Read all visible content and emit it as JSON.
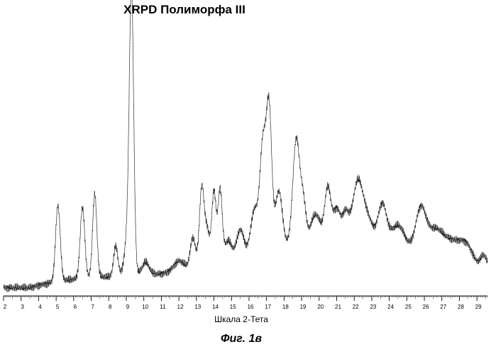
{
  "chart_data": {
    "type": "line",
    "title": "XRPD Полиморфа III",
    "xlabel": "Шкала 2-Тета",
    "ylabel": "",
    "xlim": [
      2,
      29.6
    ],
    "ylim": [
      0,
      100
    ],
    "grid": false,
    "x_ticks": [
      2,
      3,
      4,
      5,
      6,
      7,
      8,
      9,
      10,
      11,
      12,
      13,
      14,
      15,
      16,
      17,
      18,
      19,
      20,
      21,
      22,
      23,
      24,
      25,
      26,
      27,
      28,
      29
    ],
    "baseline": 1,
    "peaks": [
      [
        5.1,
        30,
        0.13
      ],
      [
        6.5,
        28,
        0.13
      ],
      [
        7.2,
        33,
        0.12
      ],
      [
        8.4,
        12,
        0.12
      ],
      [
        9.3,
        100,
        0.12
      ],
      [
        9.15,
        20,
        0.2
      ],
      [
        10.1,
        5,
        0.2
      ],
      [
        12.0,
        4,
        0.3
      ],
      [
        12.8,
        12,
        0.15
      ],
      [
        13.3,
        30,
        0.13
      ],
      [
        13.6,
        14,
        0.15
      ],
      [
        14.0,
        28,
        0.12
      ],
      [
        14.35,
        28,
        0.12
      ],
      [
        14.8,
        7,
        0.2
      ],
      [
        15.5,
        10,
        0.2
      ],
      [
        16.3,
        16,
        0.2
      ],
      [
        16.8,
        42,
        0.18
      ],
      [
        17.15,
        52,
        0.15
      ],
      [
        17.7,
        22,
        0.2
      ],
      [
        18.7,
        42,
        0.2
      ],
      [
        19.1,
        15,
        0.15
      ],
      [
        19.8,
        12,
        0.3
      ],
      [
        20.5,
        22,
        0.18
      ],
      [
        21.0,
        14,
        0.2
      ],
      [
        21.5,
        12,
        0.2
      ],
      [
        22.2,
        25,
        0.3
      ],
      [
        22.8,
        10,
        0.3
      ],
      [
        23.6,
        17,
        0.25
      ],
      [
        24.5,
        10,
        0.4
      ],
      [
        25.8,
        18,
        0.3
      ],
      [
        26.6,
        10,
        0.4
      ],
      [
        27.5,
        8,
        0.5
      ],
      [
        28.4,
        8,
        0.4
      ],
      [
        29.4,
        6,
        0.2
      ]
    ],
    "broad_background": [
      [
        17.0,
        8,
        3.0
      ],
      [
        22.0,
        9,
        4.0
      ],
      [
        26.0,
        6,
        4.0
      ]
    ]
  },
  "caption": "Фиг. 1в"
}
